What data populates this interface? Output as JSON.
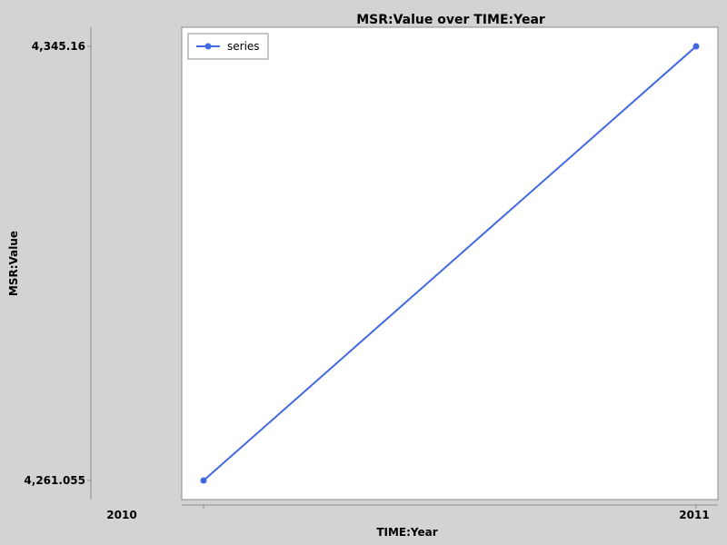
{
  "chart_data": {
    "type": "line",
    "title": "MSR:Value over TIME:Year",
    "xlabel": "TIME:Year",
    "ylabel": "MSR:Value",
    "x": [
      2010,
      2011
    ],
    "x_tick_labels": [
      "2010",
      "2011"
    ],
    "y_tick_labels": [
      "4,261.055",
      "4,345.16"
    ],
    "ylim": [
      4261.055,
      4345.16
    ],
    "series": [
      {
        "name": "series",
        "color": "#4169e1",
        "values": [
          4261.055,
          4345.16
        ]
      }
    ],
    "legend_position": "top-left",
    "grid": false
  }
}
